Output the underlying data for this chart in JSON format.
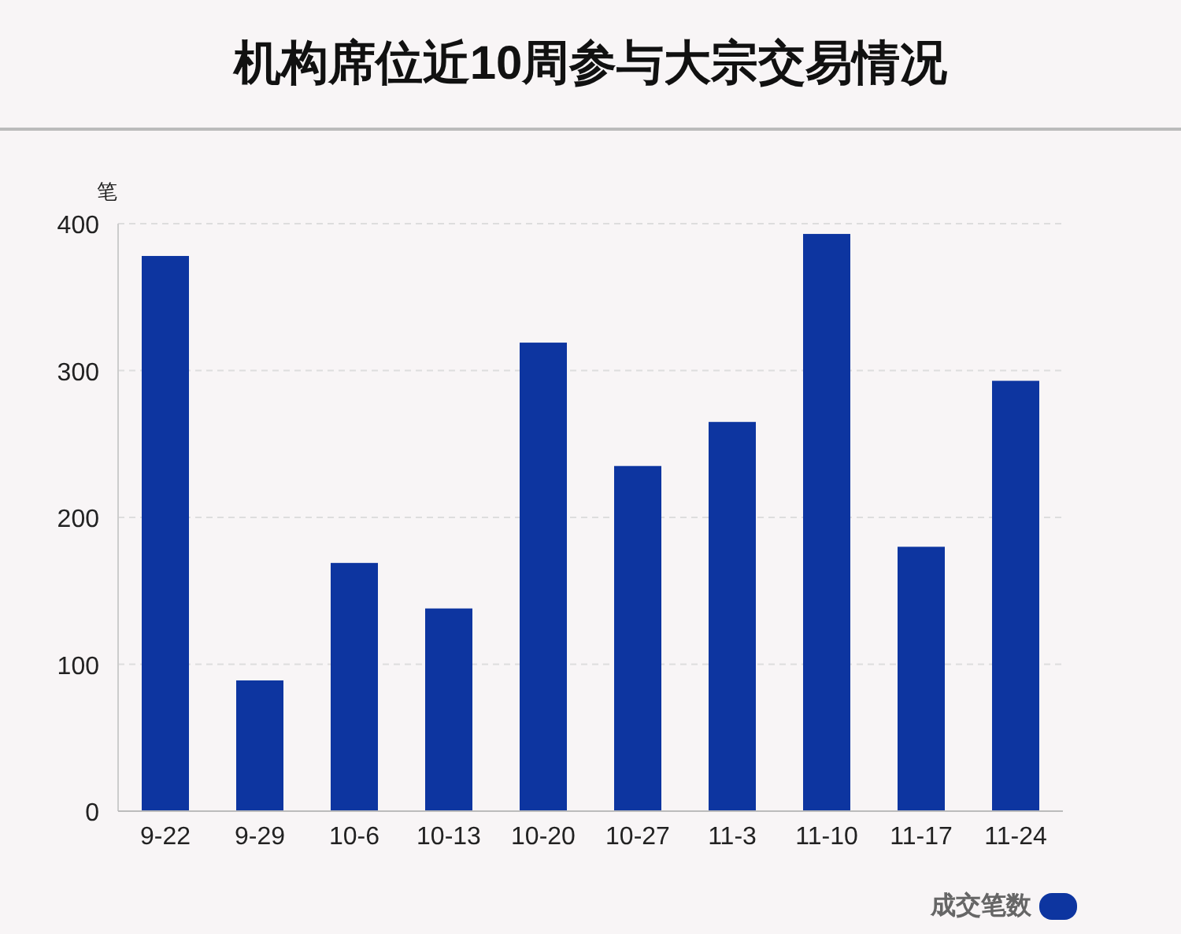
{
  "chart_data": {
    "type": "bar",
    "title": "机构席位近10周参与大宗交易情况",
    "ylabel": "笔",
    "categories": [
      "9-22",
      "9-29",
      "10-6",
      "10-13",
      "10-20",
      "10-27",
      "11-3",
      "11-10",
      "11-17",
      "11-24"
    ],
    "series": [
      {
        "name": "成交笔数",
        "color": "#0d35a0",
        "values": [
          378,
          89,
          169,
          138,
          319,
          235,
          265,
          393,
          180,
          293
        ]
      }
    ],
    "ylim": [
      0,
      400
    ],
    "yticks": [
      0,
      100,
      200,
      300,
      400
    ],
    "grid": "y",
    "legend": "bottom right"
  }
}
